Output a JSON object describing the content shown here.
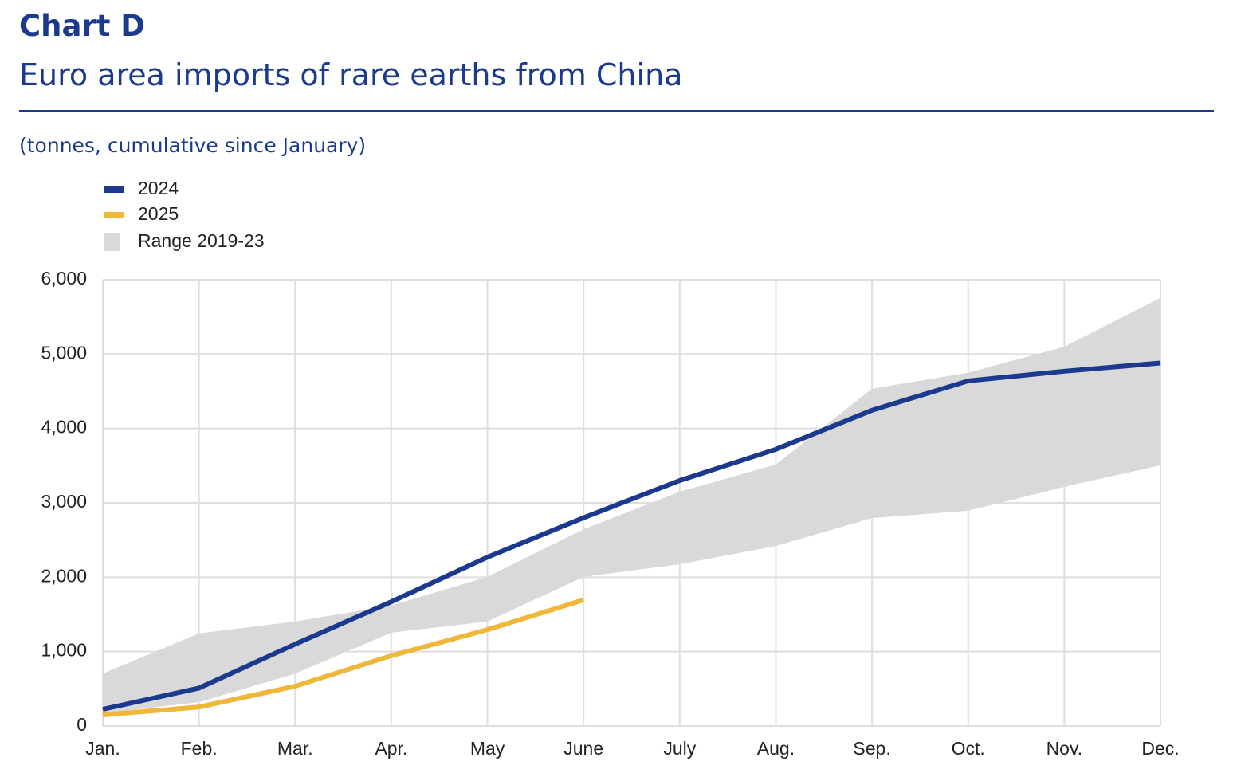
{
  "chart_data": {
    "type": "line",
    "title": "Chart D",
    "subtitle": "Euro area imports of rare earths from China",
    "unit_label": "(tonnes, cumulative since January)",
    "categories": [
      "Jan.",
      "Feb.",
      "Mar.",
      "Apr.",
      "May",
      "June",
      "July",
      "Aug.",
      "Sep.",
      "Oct.",
      "Nov.",
      "Dec."
    ],
    "series": [
      {
        "name": "2024",
        "color": "#1b3a8e",
        "values": [
          225,
          510,
          1100,
          1670,
          2270,
          2800,
          3300,
          3720,
          4245,
          4640,
          4770,
          4880
        ]
      },
      {
        "name": "2025",
        "color": "#f0b83a",
        "values": [
          150,
          255,
          535,
          945,
          1295,
          1695,
          null,
          null,
          null,
          null,
          null,
          null
        ]
      }
    ],
    "range": {
      "name": "Range 2019-23",
      "color": "#d9d9d9",
      "upper": [
        705,
        1245,
        1405,
        1620,
        2005,
        2645,
        3150,
        3515,
        4535,
        4750,
        5100,
        5755
      ],
      "lower": [
        170,
        320,
        705,
        1255,
        1405,
        2005,
        2175,
        2420,
        2795,
        2895,
        3215,
        3505
      ]
    },
    "ylim": [
      0,
      6000
    ],
    "yticks": [
      0,
      {
        "value": 1000,
        "label": "1,000"
      },
      {
        "value": 2000,
        "label": "2,000"
      },
      {
        "value": 3000,
        "label": "3,000"
      },
      {
        "value": 4000,
        "label": "4,000"
      },
      {
        "value": 5000,
        "label": "5,000"
      },
      {
        "value": 6000,
        "label": "6,000"
      }
    ],
    "grid": true
  }
}
